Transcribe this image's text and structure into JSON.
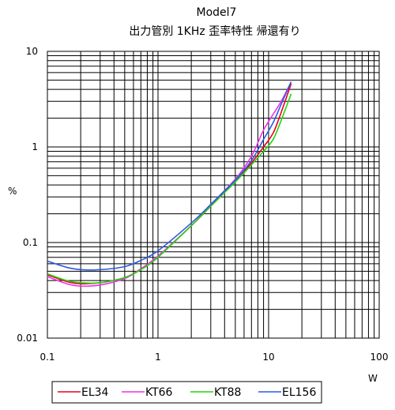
{
  "chart_data": {
    "type": "line",
    "title": "Model7",
    "subtitle": "出力管別 1KHz 歪率特性 帰還有り",
    "xlabel": "W",
    "ylabel": "%",
    "xscale": "log",
    "yscale": "log",
    "xlim": [
      0.1,
      100
    ],
    "ylim": [
      0.01,
      10
    ],
    "x_ticks": [
      "0.1",
      "1",
      "10",
      "100"
    ],
    "y_ticks": [
      "0.01",
      "0.1",
      "1",
      "10"
    ],
    "grid": true,
    "legend_position": "bottom",
    "series": [
      {
        "name": "EL34",
        "color": "#e8001c",
        "points": [
          [
            0.1,
            0.046
          ],
          [
            0.15,
            0.039
          ],
          [
            0.2,
            0.037
          ],
          [
            0.3,
            0.038
          ],
          [
            0.5,
            0.043
          ],
          [
            0.7,
            0.053
          ],
          [
            1,
            0.072
          ],
          [
            2,
            0.15
          ],
          [
            3,
            0.24
          ],
          [
            5,
            0.44
          ],
          [
            7,
            0.68
          ],
          [
            9,
            1.0
          ],
          [
            11,
            1.4
          ],
          [
            13,
            2.3
          ],
          [
            16,
            4.6
          ]
        ]
      },
      {
        "name": "KT66",
        "color": "#ee32e8",
        "points": [
          [
            0.1,
            0.044
          ],
          [
            0.15,
            0.037
          ],
          [
            0.2,
            0.035
          ],
          [
            0.3,
            0.036
          ],
          [
            0.5,
            0.042
          ],
          [
            0.7,
            0.053
          ],
          [
            1,
            0.072
          ],
          [
            2,
            0.15
          ],
          [
            3,
            0.25
          ],
          [
            5,
            0.46
          ],
          [
            7,
            0.8
          ],
          [
            9,
            1.5
          ],
          [
            11,
            2.2
          ],
          [
            13,
            3.0
          ],
          [
            16,
            4.8
          ]
        ]
      },
      {
        "name": "KT88",
        "color": "#22d40f",
        "points": [
          [
            0.1,
            0.047
          ],
          [
            0.15,
            0.04
          ],
          [
            0.2,
            0.038
          ],
          [
            0.3,
            0.038
          ],
          [
            0.5,
            0.043
          ],
          [
            0.7,
            0.052
          ],
          [
            1,
            0.07
          ],
          [
            2,
            0.15
          ],
          [
            3,
            0.24
          ],
          [
            5,
            0.43
          ],
          [
            7,
            0.65
          ],
          [
            9,
            0.9
          ],
          [
            11,
            1.2
          ],
          [
            13,
            1.9
          ],
          [
            16,
            3.6
          ]
        ]
      },
      {
        "name": "EL156",
        "color": "#2c5ae6",
        "points": [
          [
            0.1,
            0.064
          ],
          [
            0.15,
            0.055
          ],
          [
            0.2,
            0.052
          ],
          [
            0.3,
            0.052
          ],
          [
            0.5,
            0.056
          ],
          [
            0.7,
            0.065
          ],
          [
            1,
            0.082
          ],
          [
            2,
            0.16
          ],
          [
            3,
            0.25
          ],
          [
            5,
            0.45
          ],
          [
            7,
            0.72
          ],
          [
            9,
            1.2
          ],
          [
            11,
            1.8
          ],
          [
            13,
            2.8
          ],
          [
            16,
            4.8
          ]
        ]
      }
    ]
  }
}
